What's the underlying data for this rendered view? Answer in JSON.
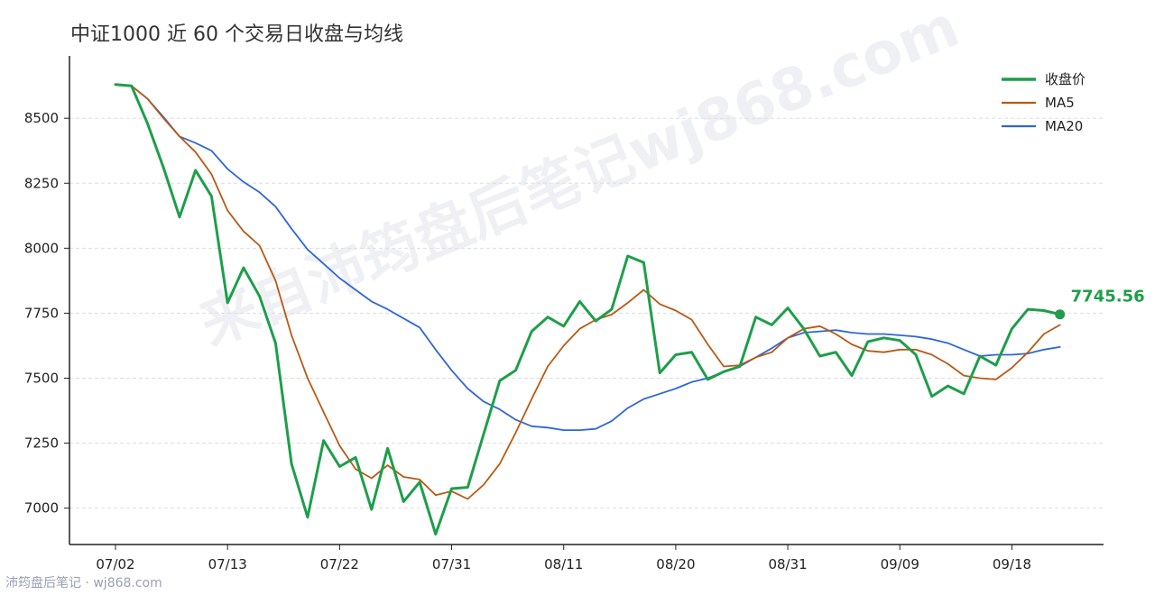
{
  "title": "中证1000 近 60 个交易日收盘与均线",
  "watermark": {
    "center": "来自沛筠盘后笔记wj868.com",
    "footer": "沛筠盘后笔记 · wj868.com"
  },
  "colors": {
    "close": "#1e9e4a",
    "ma5": "#b85a14",
    "ma20": "#2f66d8",
    "grid": "#dddddd",
    "axis": "#222222"
  },
  "chart_data": {
    "type": "line",
    "title": "中证1000 近 60 个交易日收盘与均线",
    "xlabel": "",
    "ylabel": "",
    "ylim": [
      6860,
      8740
    ],
    "yticks": [
      7000,
      7250,
      7500,
      7750,
      8000,
      8250,
      8500
    ],
    "xticks": [
      {
        "index": 0,
        "label": "07/02"
      },
      {
        "index": 7,
        "label": "07/13"
      },
      {
        "index": 14,
        "label": "07/22"
      },
      {
        "index": 21,
        "label": "07/31"
      },
      {
        "index": 28,
        "label": "08/11"
      },
      {
        "index": 35,
        "label": "08/20"
      },
      {
        "index": 42,
        "label": "08/31"
      },
      {
        "index": 49,
        "label": "09/09"
      },
      {
        "index": 56,
        "label": "09/18"
      }
    ],
    "grid": "horizontal dashed",
    "legend_position": "top-right",
    "last_value_label": "7745.56",
    "series": [
      {
        "name": "收盘价",
        "values": [
          8630,
          8625,
          8480,
          8310,
          8120,
          8300,
          8200,
          7790,
          7925,
          7815,
          7635,
          7170,
          6965,
          7260,
          7160,
          7195,
          6995,
          7230,
          7025,
          7100,
          6900,
          7075,
          7080,
          7285,
          7490,
          7530,
          7680,
          7735,
          7700,
          7795,
          7720,
          7765,
          7970,
          7945,
          7520,
          7590,
          7600,
          7495,
          7525,
          7545,
          7735,
          7705,
          7770,
          7690,
          7585,
          7600,
          7510,
          7640,
          7655,
          7645,
          7590,
          7430,
          7470,
          7440,
          7585,
          7550,
          7690,
          7765,
          7760,
          7745.56
        ]
      },
      {
        "name": "MA5",
        "values": [
          8630,
          8625,
          8575,
          8500,
          8430,
          8370,
          8285,
          8145,
          8065,
          8010,
          7875,
          7665,
          7500,
          7370,
          7240,
          7150,
          7115,
          7165,
          7120,
          7110,
          7050,
          7065,
          7035,
          7090,
          7170,
          7290,
          7420,
          7545,
          7625,
          7690,
          7725,
          7745,
          7790,
          7840,
          7785,
          7760,
          7725,
          7630,
          7545,
          7550,
          7580,
          7600,
          7655,
          7690,
          7700,
          7670,
          7630,
          7605,
          7600,
          7610,
          7610,
          7590,
          7555,
          7510,
          7500,
          7495,
          7540,
          7600,
          7670,
          7705
        ]
      },
      {
        "name": "MA20",
        "values": [
          8630,
          8625,
          8575,
          8505,
          8430,
          8405,
          8375,
          8305,
          8255,
          8215,
          8160,
          8075,
          7995,
          7940,
          7885,
          7840,
          7795,
          7765,
          7730,
          7695,
          7610,
          7530,
          7460,
          7410,
          7380,
          7340,
          7315,
          7310,
          7300,
          7300,
          7305,
          7335,
          7385,
          7420,
          7440,
          7460,
          7485,
          7500,
          7525,
          7545,
          7580,
          7615,
          7655,
          7675,
          7680,
          7685,
          7675,
          7670,
          7670,
          7665,
          7660,
          7650,
          7635,
          7610,
          7585,
          7590,
          7590,
          7595,
          7610,
          7620
        ]
      }
    ]
  }
}
